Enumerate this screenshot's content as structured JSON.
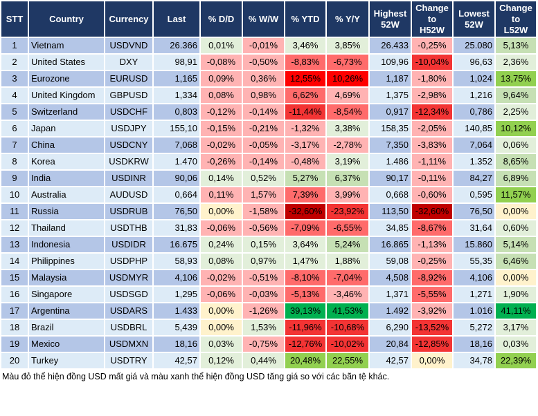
{
  "headers": [
    "STT",
    "Country",
    "Currency",
    "Last",
    "% D/D",
    "% W/W",
    "% YTD",
    "% Y/Y",
    "Highest\n52W",
    "Change\nto\nH52W",
    "Lowest\n52W",
    "Change\nto\nL52W"
  ],
  "colors": {
    "header_bg": "#1f3864",
    "row_odd": "#b4c6e7",
    "row_even": "#ddebf7",
    "p": "#ffb3b3",
    "r": "#ff6b6b",
    "R": "#f33434",
    "F": "#ff0000",
    "D": "#c00000",
    "g": "#e2efda",
    "G": "#c6e0b4",
    "GG": "#92d050",
    "GGG": "#00b050",
    "y": "#fff2cc"
  },
  "rows": [
    {
      "stt": "1",
      "country": "Vietnam",
      "currency": "USDVND",
      "last": "26.366",
      "dd": [
        "0,01%",
        "g"
      ],
      "ww": [
        "-0,01%",
        "p"
      ],
      "ytd": [
        "3,46%",
        "g"
      ],
      "yy": [
        "3,85%",
        "g"
      ],
      "high": "26.433",
      "ch": [
        "-0,25%",
        "p"
      ],
      "low": "25.080",
      "cl": [
        "5,13%",
        "G"
      ]
    },
    {
      "stt": "2",
      "country": "United States",
      "currency": "DXY",
      "last": "98,91",
      "dd": [
        "-0,08%",
        "p"
      ],
      "ww": [
        "-0,50%",
        "p"
      ],
      "ytd": [
        "-8,83%",
        "r"
      ],
      "yy": [
        "-6,73%",
        "r"
      ],
      "high": "109,96",
      "ch": [
        "-10,04%",
        "R"
      ],
      "low": "96,63",
      "cl": [
        "2,36%",
        "g"
      ]
    },
    {
      "stt": "3",
      "country": "Eurozone",
      "currency": "EURUSD",
      "last": "1,165",
      "dd": [
        "0,09%",
        "p"
      ],
      "ww": [
        "0,36%",
        "p"
      ],
      "ytd": [
        "12,55%",
        "F"
      ],
      "yy": [
        "10,26%",
        "F"
      ],
      "high": "1,187",
      "ch": [
        "-1,80%",
        "p"
      ],
      "low": "1,024",
      "cl": [
        "13,75%",
        "GG"
      ]
    },
    {
      "stt": "4",
      "country": "United Kingdom",
      "currency": "GBPUSD",
      "last": "1,334",
      "dd": [
        "0,08%",
        "p"
      ],
      "ww": [
        "0,98%",
        "p"
      ],
      "ytd": [
        "6,62%",
        "r"
      ],
      "yy": [
        "4,69%",
        "p"
      ],
      "high": "1,375",
      "ch": [
        "-2,98%",
        "p"
      ],
      "low": "1,216",
      "cl": [
        "9,64%",
        "G"
      ]
    },
    {
      "stt": "5",
      "country": "Switzerland",
      "currency": "USDCHF",
      "last": "0,803",
      "dd": [
        "-0,12%",
        "p"
      ],
      "ww": [
        "-0,14%",
        "p"
      ],
      "ytd": [
        "-11,44%",
        "R"
      ],
      "yy": [
        "-8,54%",
        "r"
      ],
      "high": "0,917",
      "ch": [
        "-12,34%",
        "R"
      ],
      "low": "0,786",
      "cl": [
        "2,25%",
        "g"
      ]
    },
    {
      "stt": "6",
      "country": "Japan",
      "currency": "USDJPY",
      "last": "155,10",
      "dd": [
        "-0,15%",
        "p"
      ],
      "ww": [
        "-0,21%",
        "p"
      ],
      "ytd": [
        "-1,32%",
        "p"
      ],
      "yy": [
        "3,38%",
        "g"
      ],
      "high": "158,35",
      "ch": [
        "-2,05%",
        "p"
      ],
      "low": "140,85",
      "cl": [
        "10,12%",
        "GG"
      ]
    },
    {
      "stt": "7",
      "country": "China",
      "currency": "USDCNY",
      "last": "7,068",
      "dd": [
        "-0,02%",
        "p"
      ],
      "ww": [
        "-0,05%",
        "p"
      ],
      "ytd": [
        "-3,17%",
        "p"
      ],
      "yy": [
        "-2,78%",
        "p"
      ],
      "high": "7,350",
      "ch": [
        "-3,83%",
        "p"
      ],
      "low": "7,064",
      "cl": [
        "0,06%",
        "g"
      ]
    },
    {
      "stt": "8",
      "country": "Korea",
      "currency": "USDKRW",
      "last": "1.470",
      "dd": [
        "-0,26%",
        "p"
      ],
      "ww": [
        "-0,14%",
        "p"
      ],
      "ytd": [
        "-0,48%",
        "p"
      ],
      "yy": [
        "3,19%",
        "g"
      ],
      "high": "1.486",
      "ch": [
        "-1,11%",
        "p"
      ],
      "low": "1.352",
      "cl": [
        "8,65%",
        "G"
      ]
    },
    {
      "stt": "9",
      "country": "India",
      "currency": "USDINR",
      "last": "90,06",
      "dd": [
        "0,14%",
        "g"
      ],
      "ww": [
        "0,52%",
        "g"
      ],
      "ytd": [
        "5,27%",
        "G"
      ],
      "yy": [
        "6,37%",
        "G"
      ],
      "high": "90,17",
      "ch": [
        "-0,11%",
        "p"
      ],
      "low": "84,27",
      "cl": [
        "6,89%",
        "G"
      ]
    },
    {
      "stt": "10",
      "country": "Australia",
      "currency": "AUDUSD",
      "last": "0,664",
      "dd": [
        "0,11%",
        "p"
      ],
      "ww": [
        "1,57%",
        "p"
      ],
      "ytd": [
        "7,39%",
        "r"
      ],
      "yy": [
        "3,99%",
        "p"
      ],
      "high": "0,668",
      "ch": [
        "-0,60%",
        "p"
      ],
      "low": "0,595",
      "cl": [
        "11,57%",
        "GG"
      ]
    },
    {
      "stt": "11",
      "country": "Russia",
      "currency": "USDRUB",
      "last": "76,50",
      "dd": [
        "0,00%",
        "y"
      ],
      "ww": [
        "-1,58%",
        "p"
      ],
      "ytd": [
        "-32,60%",
        "D"
      ],
      "yy": [
        "-23,92%",
        "R"
      ],
      "high": "113,50",
      "ch": [
        "-32,60%",
        "D"
      ],
      "low": "76,50",
      "cl": [
        "0,00%",
        "y"
      ]
    },
    {
      "stt": "12",
      "country": "Thailand",
      "currency": "USDTHB",
      "last": "31,83",
      "dd": [
        "-0,06%",
        "p"
      ],
      "ww": [
        "-0,56%",
        "p"
      ],
      "ytd": [
        "-7,09%",
        "r"
      ],
      "yy": [
        "-6,55%",
        "r"
      ],
      "high": "34,85",
      "ch": [
        "-8,67%",
        "r"
      ],
      "low": "31,64",
      "cl": [
        "0,60%",
        "g"
      ]
    },
    {
      "stt": "13",
      "country": "Indonesia",
      "currency": "USDIDR",
      "last": "16.675",
      "dd": [
        "0,24%",
        "g"
      ],
      "ww": [
        "0,15%",
        "g"
      ],
      "ytd": [
        "3,64%",
        "g"
      ],
      "yy": [
        "5,24%",
        "G"
      ],
      "high": "16.865",
      "ch": [
        "-1,13%",
        "p"
      ],
      "low": "15.860",
      "cl": [
        "5,14%",
        "G"
      ]
    },
    {
      "stt": "14",
      "country": "Philippines",
      "currency": "USDPHP",
      "last": "58,93",
      "dd": [
        "0,08%",
        "g"
      ],
      "ww": [
        "0,97%",
        "g"
      ],
      "ytd": [
        "1,47%",
        "g"
      ],
      "yy": [
        "1,88%",
        "g"
      ],
      "high": "59,08",
      "ch": [
        "-0,25%",
        "p"
      ],
      "low": "55,35",
      "cl": [
        "6,46%",
        "G"
      ]
    },
    {
      "stt": "15",
      "country": "Malaysia",
      "currency": "USDMYR",
      "last": "4,106",
      "dd": [
        "-0,02%",
        "p"
      ],
      "ww": [
        "-0,51%",
        "p"
      ],
      "ytd": [
        "-8,10%",
        "r"
      ],
      "yy": [
        "-7,04%",
        "r"
      ],
      "high": "4,508",
      "ch": [
        "-8,92%",
        "r"
      ],
      "low": "4,106",
      "cl": [
        "0,00%",
        "y"
      ]
    },
    {
      "stt": "16",
      "country": "Singapore",
      "currency": "USDSGD",
      "last": "1,295",
      "dd": [
        "-0,06%",
        "p"
      ],
      "ww": [
        "-0,03%",
        "p"
      ],
      "ytd": [
        "-5,13%",
        "r"
      ],
      "yy": [
        "-3,46%",
        "p"
      ],
      "high": "1,371",
      "ch": [
        "-5,55%",
        "r"
      ],
      "low": "1,271",
      "cl": [
        "1,90%",
        "g"
      ]
    },
    {
      "stt": "17",
      "country": "Argentina",
      "currency": "USDARS",
      "last": "1.433",
      "dd": [
        "0,00%",
        "y"
      ],
      "ww": [
        "-1,26%",
        "p"
      ],
      "ytd": [
        "39,13%",
        "GGG"
      ],
      "yy": [
        "41,53%",
        "GGG"
      ],
      "high": "1.492",
      "ch": [
        "-3,92%",
        "p"
      ],
      "low": "1.016",
      "cl": [
        "41,11%",
        "GGG"
      ]
    },
    {
      "stt": "18",
      "country": "Brazil",
      "currency": "USDBRL",
      "last": "5,439",
      "dd": [
        "0,00%",
        "y"
      ],
      "ww": [
        "1,53%",
        "g"
      ],
      "ytd": [
        "-11,96%",
        "R"
      ],
      "yy": [
        "-10,68%",
        "R"
      ],
      "high": "6,290",
      "ch": [
        "-13,52%",
        "R"
      ],
      "low": "5,272",
      "cl": [
        "3,17%",
        "g"
      ]
    },
    {
      "stt": "19",
      "country": "Mexico",
      "currency": "USDMXN",
      "last": "18,16",
      "dd": [
        "0,03%",
        "g"
      ],
      "ww": [
        "-0,75%",
        "p"
      ],
      "ytd": [
        "-12,76%",
        "R"
      ],
      "yy": [
        "-10,02%",
        "R"
      ],
      "high": "20,84",
      "ch": [
        "-12,85%",
        "R"
      ],
      "low": "18,16",
      "cl": [
        "0,03%",
        "g"
      ]
    },
    {
      "stt": "20",
      "country": "Turkey",
      "currency": "USDTRY",
      "last": "42,57",
      "dd": [
        "0,12%",
        "g"
      ],
      "ww": [
        "0,44%",
        "g"
      ],
      "ytd": [
        "20,48%",
        "GG"
      ],
      "yy": [
        "22,55%",
        "GG"
      ],
      "high": "42,57",
      "ch": [
        "0,00%",
        "y"
      ],
      "low": "34,78",
      "cl": [
        "22,39%",
        "GG"
      ]
    }
  ],
  "footer": "Màu đỏ thể hiện đồng USD mất giá và màu xanh thể hiện đồng USD tăng giá so với các bãn tệ khác."
}
